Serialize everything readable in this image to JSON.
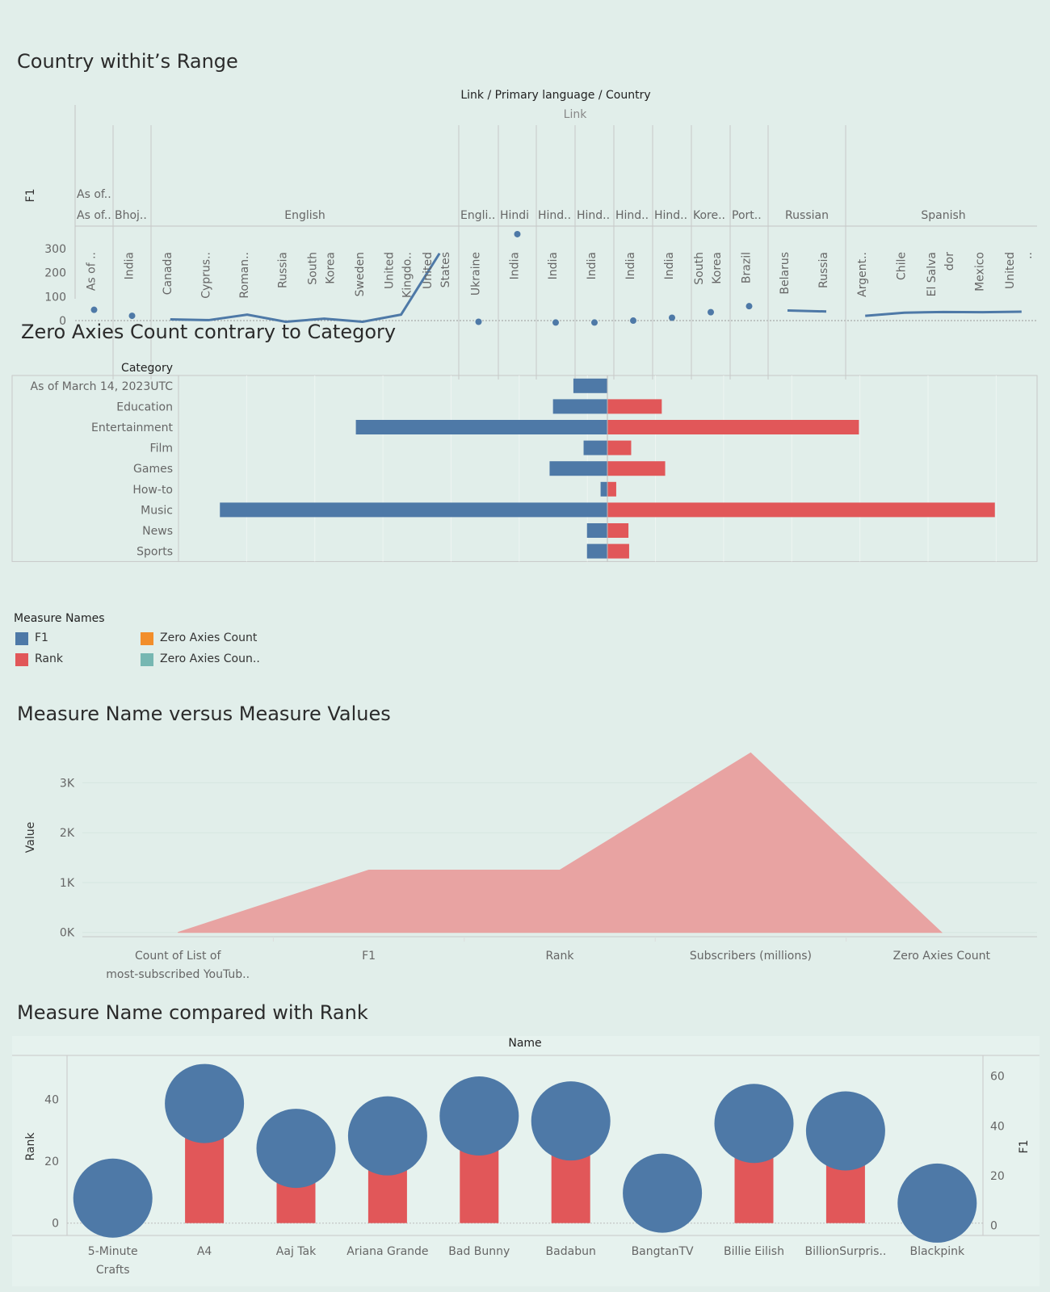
{
  "colors": {
    "f1": "#4e79a7",
    "rank": "#e15759",
    "zero_axies_count": "#f28e2b",
    "zero_axies_count_2": "#76b7b2",
    "area": "#e8a3a2"
  },
  "charts": {
    "country_range": {
      "title": "Country withit’s Range"
    },
    "zero_axies": {
      "title": "Zero Axies Count contrary  to Category"
    },
    "measure_values": {
      "title": "Measure Name versus Measure Values"
    },
    "rank": {
      "title": "Measure Name compared with  Rank"
    }
  },
  "legend": {
    "title": "Measure Names",
    "items": [
      {
        "label": "F1",
        "color": "#4e79a7"
      },
      {
        "label": "Zero Axies Count",
        "color": "#f28e2b"
      },
      {
        "label": "Rank",
        "color": "#e15759"
      },
      {
        "label": "Zero Axies Coun..",
        "color": "#76b7b2"
      }
    ]
  },
  "chart_data": [
    {
      "type": "line",
      "title": "Country withit’s Range",
      "header": "Link / Primary language / Country",
      "link_header": "Link",
      "ylabel": "F1",
      "ylim": [
        -10,
        380
      ],
      "yticks": [
        0,
        100,
        200,
        300
      ],
      "groups": [
        {
          "top": "As of..",
          "language": "As of..",
          "countries": [
            "As of .."
          ],
          "values": [
            45
          ]
        },
        {
          "top": "",
          "language": "Bhoj..",
          "countries": [
            "India"
          ],
          "values": [
            20
          ]
        },
        {
          "top": "",
          "language": "English",
          "countries": [
            "Canada",
            "Cyprus..",
            "Roman..",
            "Russia",
            "South Korea",
            "Sweden",
            "United Kingdo..",
            "United States"
          ],
          "values": [
            5,
            2,
            25,
            -5,
            8,
            -5,
            25,
            280
          ]
        },
        {
          "top": "",
          "language": "Engli..",
          "countries": [
            "Ukraine"
          ],
          "values": [
            -5
          ]
        },
        {
          "top": "",
          "language": "Hindi",
          "countries": [
            "India"
          ],
          "values": [
            360
          ]
        },
        {
          "top": "",
          "language": "Hind..",
          "countries": [
            "India"
          ],
          "values": [
            -8
          ]
        },
        {
          "top": "",
          "language": "Hind..",
          "countries": [
            "India"
          ],
          "values": [
            -8
          ]
        },
        {
          "top": "",
          "language": "Hind..",
          "countries": [
            "India"
          ],
          "values": [
            0
          ]
        },
        {
          "top": "",
          "language": "Hind..",
          "countries": [
            "India"
          ],
          "values": [
            12
          ]
        },
        {
          "top": "",
          "language": "Kore..",
          "countries": [
            "South Korea"
          ],
          "values": [
            35
          ]
        },
        {
          "top": "",
          "language": "Port..",
          "countries": [
            "Brazil"
          ],
          "values": [
            60
          ]
        },
        {
          "top": "",
          "language": "Russian",
          "countries": [
            "Belarus",
            "Russia"
          ],
          "values": [
            42,
            38
          ]
        },
        {
          "top": "",
          "language": "Spanish",
          "countries": [
            "Argent..",
            "Chile",
            "El Salva dor",
            "Mexico",
            "United .."
          ],
          "values": [
            20,
            33,
            36,
            35,
            37
          ]
        }
      ]
    },
    {
      "type": "bar",
      "title": "Zero Axies Count contrary  to Category",
      "ylabel": "Category",
      "categories": [
        "As of March 14, 2023UTC",
        "Education",
        "Entertainment",
        "Film",
        "Games",
        "How-to",
        "Music",
        "News",
        "Sports"
      ],
      "series": [
        {
          "name": "F1",
          "values": [
            5,
            8,
            37,
            3.5,
            8.5,
            1,
            57,
            3,
            3
          ]
        },
        {
          "name": "Rank",
          "values": [
            0,
            8,
            37,
            3.5,
            8.5,
            1.3,
            57,
            3.1,
            3.2
          ]
        }
      ],
      "xlim": [
        -60,
        60
      ]
    },
    {
      "type": "area",
      "title": "Measure Name versus Measure Values",
      "categories": [
        "Count of List of most-subscribed YouTub..",
        "F1",
        "Rank",
        "Subscribers (millions)",
        "Zero Axies Count"
      ],
      "values": [
        0,
        1250,
        1250,
        3600,
        0
      ],
      "ylabel": "Value",
      "ylim": [
        -150,
        3800
      ],
      "yticks": [
        0,
        1000,
        2000,
        3000
      ],
      "ytick_labels": [
        "0K",
        "1K",
        "2K",
        "3K"
      ]
    },
    {
      "type": "bar",
      "title": "Measure Name compared with  Rank",
      "xlabel": "Name",
      "categories": [
        "5-Minute Crafts",
        "A4",
        "Aaj Tak",
        "Ariana Grande",
        "Bad Bunny",
        "Badabun",
        "BangtanTV",
        "Billie Eilish",
        "BillionSurpris..",
        "Blackpink"
      ],
      "series": [
        {
          "name": "Rank",
          "axis": "left",
          "values": [
            0,
            38,
            24,
            28,
            35,
            33,
            0,
            32,
            30,
            0
          ]
        },
        {
          "name": "F1",
          "axis": "right",
          "values": [
            11,
            49,
            31,
            36,
            44,
            42,
            13,
            41,
            38,
            9
          ]
        }
      ],
      "ylabel": "Rank",
      "ylim": [
        -4,
        54
      ],
      "yticks": [
        0,
        20,
        40
      ],
      "y2label": "F1",
      "y2lim": [
        -4,
        68
      ],
      "y2ticks": [
        0,
        20,
        40,
        60
      ]
    }
  ]
}
